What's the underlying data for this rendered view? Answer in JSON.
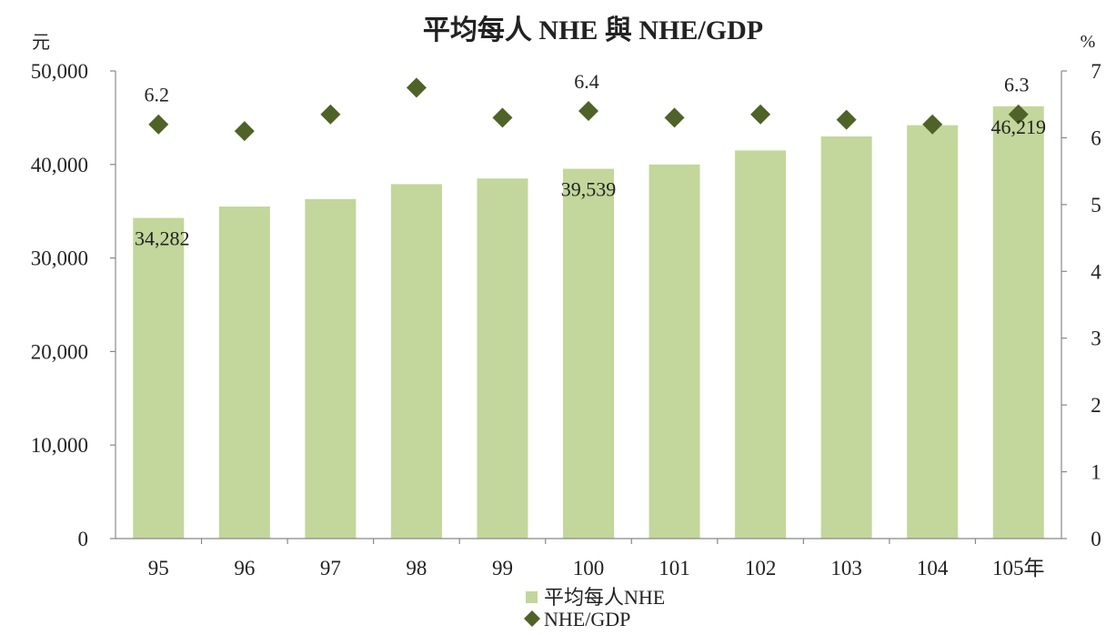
{
  "chart_data": {
    "type": "bar",
    "title": "平均每人 NHE 與 NHE/GDP",
    "left_unit": "元",
    "right_unit": "%",
    "categories": [
      "95",
      "96",
      "97",
      "98",
      "99",
      "100",
      "101",
      "102",
      "103",
      "104",
      "105年"
    ],
    "series": [
      {
        "name": "平均每人NHE",
        "kind": "bar",
        "axis": "left",
        "color": "#c3d69b",
        "values": [
          34282,
          35500,
          36300,
          37900,
          38500,
          39539,
          40000,
          41500,
          43000,
          44200,
          46219
        ],
        "labels": [
          {
            "category": "95",
            "text": "34,282"
          },
          {
            "category": "100",
            "text": "39,539"
          },
          {
            "category": "105年",
            "text": "46,219"
          }
        ]
      },
      {
        "name": "NHE/GDP",
        "kind": "scatter",
        "axis": "right",
        "color": "#4f6228",
        "marker": "diamond",
        "values": [
          6.2,
          6.1,
          6.35,
          6.75,
          6.3,
          6.4,
          6.3,
          6.35,
          6.27,
          6.2,
          6.35
        ],
        "labels": [
          {
            "category": "95",
            "text": "6.2"
          },
          {
            "category": "100",
            "text": "6.4"
          },
          {
            "category": "105年",
            "text": "6.3"
          }
        ]
      }
    ],
    "y_left": {
      "min": 0,
      "max": 50000,
      "ticks": [
        "0",
        "10,000",
        "20,000",
        "30,000",
        "40,000",
        "50,000"
      ]
    },
    "y_right": {
      "min": 0,
      "max": 7,
      "ticks": [
        "0",
        "1",
        "2",
        "3",
        "4",
        "5",
        "6",
        "7"
      ]
    },
    "grid": false,
    "legend_position": "bottom"
  }
}
